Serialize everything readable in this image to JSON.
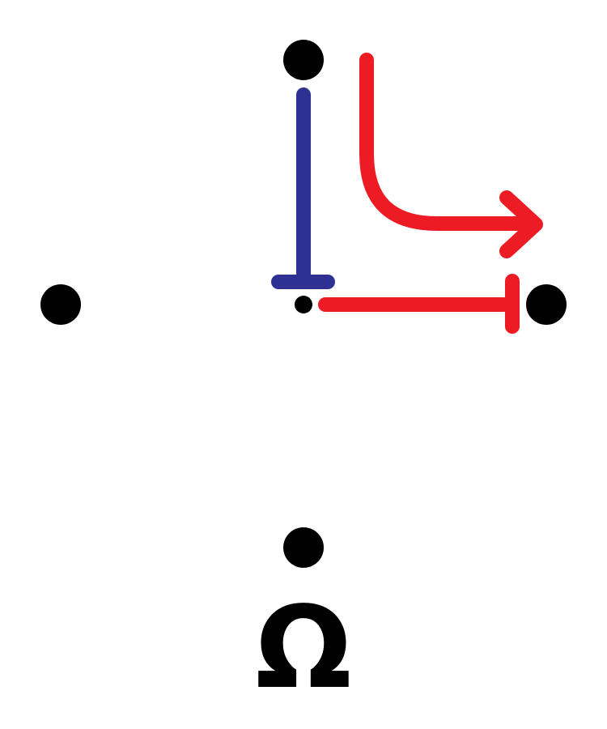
{
  "diagram": {
    "colors": {
      "node": "#000000",
      "inhibit": "#2e3192",
      "activate": "#ed1c24",
      "background": "#ffffff"
    },
    "nodes": [
      {
        "id": "node-top"
      },
      {
        "id": "node-left"
      },
      {
        "id": "node-center"
      },
      {
        "id": "node-right"
      },
      {
        "id": "node-bottom"
      }
    ],
    "arrows": [
      {
        "id": "inhibition-top-to-center",
        "kind": "inhibition",
        "color_key": "inhibit"
      },
      {
        "id": "activation-curved",
        "kind": "activation",
        "color_key": "activate"
      },
      {
        "id": "inhibition-center-to-right",
        "kind": "inhibition",
        "color_key": "activate"
      }
    ],
    "symbol": {
      "text": "Ω"
    }
  }
}
